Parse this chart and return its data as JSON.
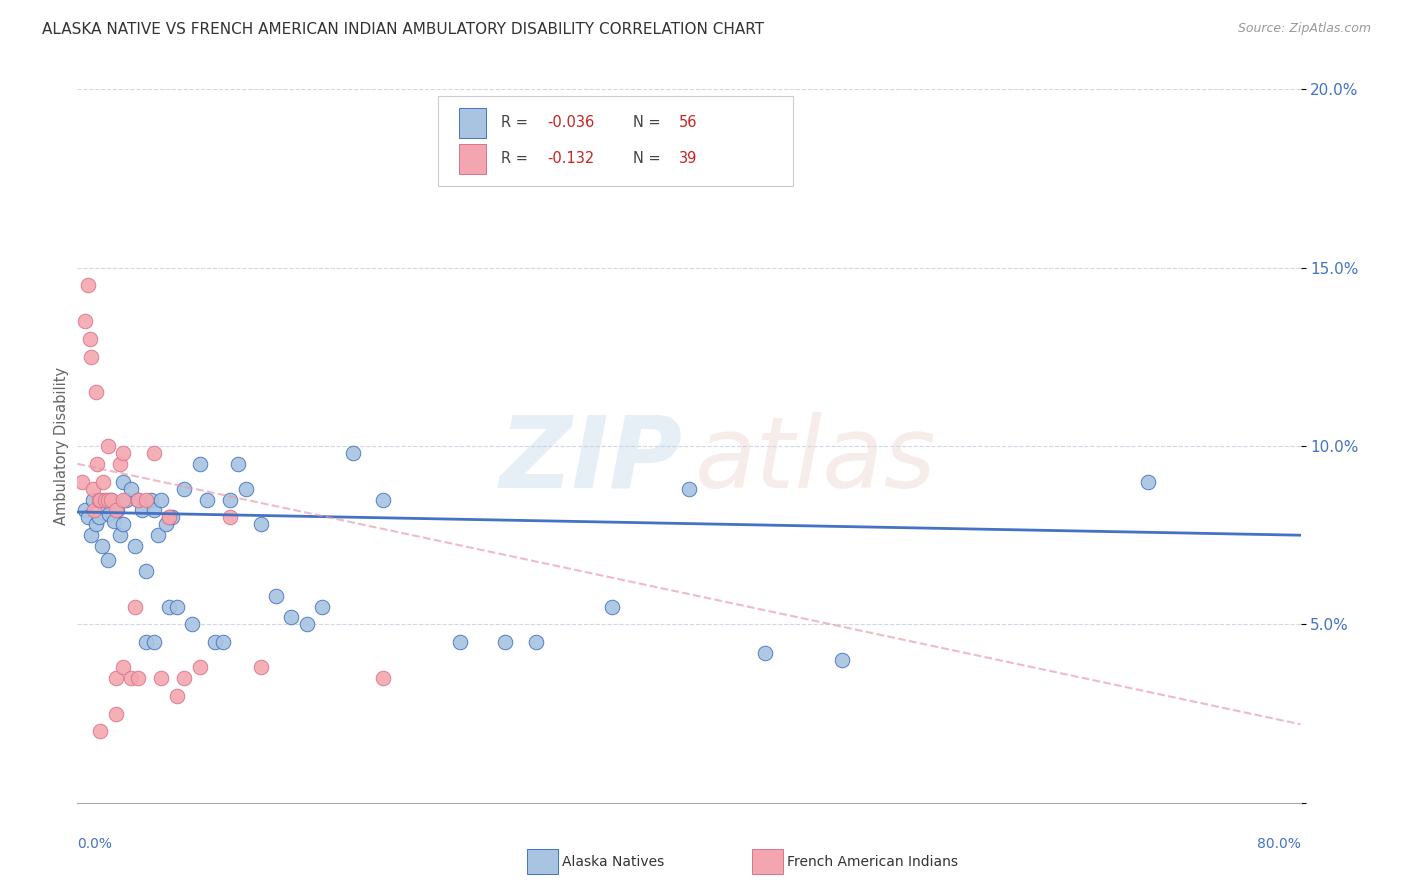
{
  "title": "ALASKA NATIVE VS FRENCH AMERICAN INDIAN AMBULATORY DISABILITY CORRELATION CHART",
  "source": "Source: ZipAtlas.com",
  "ylabel": "Ambulatory Disability",
  "xlim": [
    0.0,
    80.0
  ],
  "ylim": [
    0.0,
    20.0
  ],
  "yticks": [
    0.0,
    5.0,
    10.0,
    15.0,
    20.0
  ],
  "ytick_labels": [
    "",
    "5.0%",
    "10.0%",
    "15.0%",
    "20.0%"
  ],
  "blue_r": "-0.036",
  "blue_n": "56",
  "pink_r": "-0.132",
  "pink_n": "39",
  "blue_fill": "#a8c4e0",
  "blue_edge": "#4472c4",
  "pink_fill": "#f4a6b0",
  "pink_edge": "#d9748a",
  "blue_line_color": "#4472c4",
  "pink_line_color": "#e896a8",
  "grid_color": "#d0d8e8",
  "axis_label_color": "#4472c4",
  "title_color": "#333333",
  "red_text_color": "#cc2222",
  "gray_text_color": "#444444",
  "blue_dots": [
    [
      0.5,
      8.2
    ],
    [
      0.7,
      8.0
    ],
    [
      0.9,
      7.5
    ],
    [
      1.0,
      8.5
    ],
    [
      1.2,
      7.8
    ],
    [
      1.4,
      8.0
    ],
    [
      1.6,
      7.2
    ],
    [
      1.8,
      8.3
    ],
    [
      2.0,
      6.8
    ],
    [
      2.1,
      8.1
    ],
    [
      2.2,
      8.5
    ],
    [
      2.4,
      7.9
    ],
    [
      2.6,
      8.2
    ],
    [
      2.8,
      7.5
    ],
    [
      3.0,
      9.0
    ],
    [
      3.0,
      7.8
    ],
    [
      3.2,
      8.5
    ],
    [
      3.5,
      8.8
    ],
    [
      3.8,
      7.2
    ],
    [
      4.0,
      8.5
    ],
    [
      4.2,
      8.2
    ],
    [
      4.5,
      6.5
    ],
    [
      4.5,
      4.5
    ],
    [
      4.8,
      8.5
    ],
    [
      5.0,
      4.5
    ],
    [
      5.0,
      8.2
    ],
    [
      5.3,
      7.5
    ],
    [
      5.5,
      8.5
    ],
    [
      5.8,
      7.8
    ],
    [
      6.0,
      5.5
    ],
    [
      6.2,
      8.0
    ],
    [
      6.5,
      5.5
    ],
    [
      7.0,
      8.8
    ],
    [
      7.5,
      5.0
    ],
    [
      8.0,
      9.5
    ],
    [
      8.5,
      8.5
    ],
    [
      9.0,
      4.5
    ],
    [
      9.5,
      4.5
    ],
    [
      10.0,
      8.5
    ],
    [
      10.5,
      9.5
    ],
    [
      11.0,
      8.8
    ],
    [
      12.0,
      7.8
    ],
    [
      13.0,
      5.8
    ],
    [
      14.0,
      5.2
    ],
    [
      15.0,
      5.0
    ],
    [
      16.0,
      5.5
    ],
    [
      18.0,
      9.8
    ],
    [
      20.0,
      8.5
    ],
    [
      25.0,
      4.5
    ],
    [
      28.0,
      4.5
    ],
    [
      30.0,
      4.5
    ],
    [
      35.0,
      5.5
    ],
    [
      40.0,
      8.8
    ],
    [
      45.0,
      4.2
    ],
    [
      50.0,
      4.0
    ],
    [
      70.0,
      9.0
    ]
  ],
  "pink_dots": [
    [
      0.3,
      9.0
    ],
    [
      0.5,
      13.5
    ],
    [
      0.7,
      14.5
    ],
    [
      0.8,
      13.0
    ],
    [
      0.9,
      12.5
    ],
    [
      1.0,
      8.8
    ],
    [
      1.1,
      8.2
    ],
    [
      1.2,
      11.5
    ],
    [
      1.3,
      9.5
    ],
    [
      1.4,
      8.5
    ],
    [
      1.5,
      8.5
    ],
    [
      1.7,
      9.0
    ],
    [
      1.8,
      8.5
    ],
    [
      2.0,
      8.5
    ],
    [
      2.0,
      10.0
    ],
    [
      2.2,
      8.5
    ],
    [
      2.5,
      8.2
    ],
    [
      2.5,
      3.5
    ],
    [
      2.8,
      9.5
    ],
    [
      3.0,
      8.5
    ],
    [
      3.0,
      9.8
    ],
    [
      3.0,
      3.8
    ],
    [
      3.5,
      3.5
    ],
    [
      3.8,
      5.5
    ],
    [
      4.0,
      8.5
    ],
    [
      4.0,
      3.5
    ],
    [
      4.5,
      8.5
    ],
    [
      5.0,
      9.8
    ],
    [
      5.5,
      3.5
    ],
    [
      6.0,
      8.0
    ],
    [
      6.0,
      8.0
    ],
    [
      6.5,
      3.0
    ],
    [
      7.0,
      3.5
    ],
    [
      8.0,
      3.8
    ],
    [
      10.0,
      8.0
    ],
    [
      12.0,
      3.8
    ],
    [
      20.0,
      3.5
    ],
    [
      2.5,
      2.5
    ],
    [
      1.5,
      2.0
    ]
  ],
  "blue_line_x": [
    0,
    80
  ],
  "blue_line_y": [
    8.15,
    7.5
  ],
  "pink_line_x": [
    0,
    80
  ],
  "pink_line_y": [
    9.5,
    2.2
  ]
}
